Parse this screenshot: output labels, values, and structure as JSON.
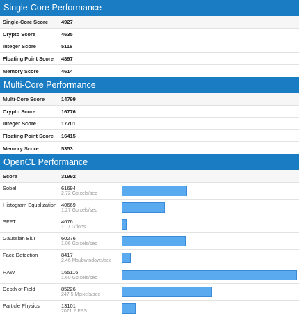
{
  "sections": [
    {
      "title": "Single-Core Performance",
      "rows": [
        {
          "label": "Single-Core Score",
          "score": 4927
        },
        {
          "label": "Crypto Score",
          "score": 4635
        },
        {
          "label": "Integer Score",
          "score": 5118
        },
        {
          "label": "Floating Point Score",
          "score": 4897
        },
        {
          "label": "Memory Score",
          "score": 4614
        }
      ]
    },
    {
      "title": "Multi-Core Performance",
      "rows": [
        {
          "label": "Multi-Core Score",
          "score": 14799
        },
        {
          "label": "Crypto Score",
          "score": 16776
        },
        {
          "label": "Integer Score",
          "score": 17701
        },
        {
          "label": "Floating Point Score",
          "score": 16415
        },
        {
          "label": "Memory Score",
          "score": 5353
        }
      ]
    },
    {
      "title": "OpenCL Performance",
      "rows": [
        {
          "label": "Score",
          "score": 31992
        },
        {
          "label": "Sobel",
          "score": 61694,
          "detail": "2.72 Gpixels/sec"
        },
        {
          "label": "Histogram Equalization",
          "score": 40669,
          "detail": "1.27 Gpixels/sec"
        },
        {
          "label": "SFFT",
          "score": 4676,
          "detail": "11.7 Gflops"
        },
        {
          "label": "Gaussian Blur",
          "score": 60276,
          "detail": "1.06 Gpixels/sec"
        },
        {
          "label": "Face Detection",
          "score": 8417,
          "detail": "2.46 Msubwindows/sec"
        },
        {
          "label": "RAW",
          "score": 165116,
          "detail": "1.60 Gpixels/sec"
        },
        {
          "label": "Depth of Field",
          "score": 85226,
          "detail": "247.5 Mpixels/sec"
        },
        {
          "label": "Particle Physics",
          "score": 13101,
          "detail": "2071.2 FPS"
        }
      ]
    }
  ]
}
